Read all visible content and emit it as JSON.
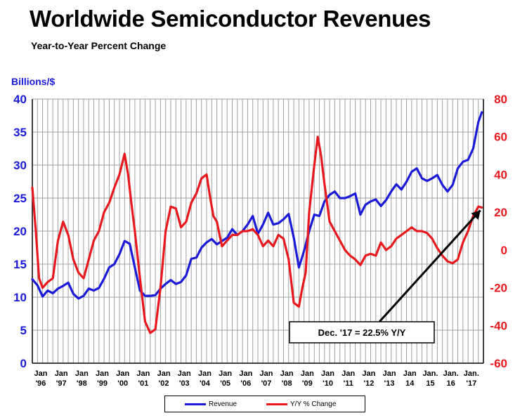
{
  "title": "Worldwide Semiconductor Revenues",
  "subtitle": "Year-to-Year Percent Change",
  "colors": {
    "revenue": "#1a1ad8",
    "yy": "#e8191e",
    "grid": "#a0a0a0"
  },
  "annotation": "Dec. '17 = 22.5% Y/Y",
  "legend": {
    "revenue": "Revenue",
    "yy": "Y/Y % Change"
  },
  "chart_data": {
    "type": "line",
    "ylabel_left": "Billions/$",
    "ylim_left": [
      0,
      40
    ],
    "yticks_left": [
      0,
      5,
      10,
      15,
      20,
      25,
      30,
      35,
      40
    ],
    "ylim_right": [
      -60,
      80
    ],
    "yticks_right": [
      -60,
      -40,
      -20,
      0,
      20,
      40,
      60,
      80
    ],
    "xlim": [
      1996.0,
      2018.0
    ],
    "x_ticks": [
      {
        "top": "Jan",
        "bottom": "'96"
      },
      {
        "top": "Jan",
        "bottom": "'97"
      },
      {
        "top": "Jan",
        "bottom": "'98"
      },
      {
        "top": "Jan",
        "bottom": "'99"
      },
      {
        "top": "Jan",
        "bottom": "'00"
      },
      {
        "top": "Jan",
        "bottom": "'01"
      },
      {
        "top": "Jan",
        "bottom": "'02"
      },
      {
        "top": "Jan",
        "bottom": "'03"
      },
      {
        "top": "Jan",
        "bottom": "'04"
      },
      {
        "top": "Jan",
        "bottom": "'05"
      },
      {
        "top": "Jan",
        "bottom": "'06"
      },
      {
        "top": "Jan",
        "bottom": "'07"
      },
      {
        "top": "Jan",
        "bottom": "'08"
      },
      {
        "top": "Jan",
        "bottom": "'09"
      },
      {
        "top": "Jan",
        "bottom": "'10"
      },
      {
        "top": "Jan",
        "bottom": "'11"
      },
      {
        "top": "Jan",
        "bottom": "'12"
      },
      {
        "top": "Jan",
        "bottom": "'13"
      },
      {
        "top": "Jan",
        "bottom": "14"
      },
      {
        "top": "Jan.",
        "bottom": "15"
      },
      {
        "top": "Jan.",
        "bottom": "16"
      },
      {
        "top": "Jan.",
        "bottom": "'17"
      }
    ],
    "grid": true,
    "legend_position": "bottom-center",
    "series": [
      {
        "name": "Revenue",
        "axis": "left",
        "x": [
          1996.0,
          1996.25,
          1996.5,
          1996.75,
          1997.0,
          1997.25,
          1997.5,
          1997.75,
          1998.0,
          1998.25,
          1998.5,
          1998.75,
          1999.0,
          1999.25,
          1999.5,
          1999.75,
          2000.0,
          2000.25,
          2000.5,
          2000.75,
          2001.0,
          2001.25,
          2001.5,
          2001.75,
          2002.0,
          2002.25,
          2002.5,
          2002.75,
          2003.0,
          2003.25,
          2003.5,
          2003.75,
          2004.0,
          2004.25,
          2004.5,
          2004.75,
          2005.0,
          2005.25,
          2005.5,
          2005.75,
          2006.0,
          2006.25,
          2006.5,
          2006.75,
          2007.0,
          2007.25,
          2007.5,
          2007.75,
          2008.0,
          2008.25,
          2008.5,
          2008.75,
          2009.0,
          2009.25,
          2009.5,
          2009.75,
          2010.0,
          2010.25,
          2010.5,
          2010.75,
          2011.0,
          2011.25,
          2011.5,
          2011.75,
          2012.0,
          2012.25,
          2012.5,
          2012.75,
          2013.0,
          2013.25,
          2013.5,
          2013.75,
          2014.0,
          2014.25,
          2014.5,
          2014.75,
          2015.0,
          2015.25,
          2015.5,
          2015.75,
          2016.0,
          2016.25,
          2016.5,
          2016.75,
          2017.0,
          2017.25,
          2017.5,
          2017.75,
          2017.92
        ],
        "values": [
          12.7,
          11.8,
          10.1,
          11.0,
          10.6,
          11.3,
          11.7,
          12.2,
          10.5,
          9.8,
          10.2,
          11.3,
          11.0,
          11.4,
          12.8,
          14.5,
          15.0,
          16.5,
          18.5,
          18.1,
          14.5,
          11.0,
          10.2,
          10.2,
          10.3,
          11.3,
          12.0,
          12.6,
          12.0,
          12.3,
          13.3,
          15.8,
          16.0,
          17.5,
          18.3,
          18.8,
          18.0,
          18.5,
          19.0,
          20.3,
          19.4,
          20.0,
          21.0,
          22.3,
          19.6,
          21.0,
          22.8,
          21.0,
          21.2,
          21.8,
          22.6,
          19.0,
          14.5,
          17.0,
          20.0,
          22.5,
          22.3,
          24.5,
          25.5,
          26.0,
          25.0,
          25.0,
          25.3,
          25.7,
          22.5,
          24.0,
          24.5,
          24.8,
          23.8,
          24.7,
          26.0,
          27.1,
          26.3,
          27.5,
          29.0,
          29.5,
          28.0,
          27.6,
          28.0,
          28.5,
          27.0,
          26.0,
          27.0,
          29.5,
          30.5,
          30.8,
          32.5,
          36.5,
          38.0
        ]
      },
      {
        "name": "Y/Y % Change",
        "axis": "right",
        "x": [
          1996.0,
          1996.17,
          1996.33,
          1996.5,
          1996.75,
          1997.0,
          1997.25,
          1997.5,
          1997.75,
          1998.0,
          1998.25,
          1998.5,
          1998.75,
          1999.0,
          1999.25,
          1999.5,
          1999.75,
          2000.0,
          2000.25,
          2000.5,
          2000.67,
          2000.83,
          2001.0,
          2001.25,
          2001.5,
          2001.75,
          2002.0,
          2002.25,
          2002.5,
          2002.75,
          2003.0,
          2003.25,
          2003.5,
          2003.75,
          2004.0,
          2004.25,
          2004.5,
          2004.67,
          2004.83,
          2005.0,
          2005.25,
          2005.5,
          2005.75,
          2006.0,
          2006.25,
          2006.5,
          2006.75,
          2007.0,
          2007.25,
          2007.5,
          2007.75,
          2008.0,
          2008.25,
          2008.5,
          2008.75,
          2009.0,
          2009.17,
          2009.33,
          2009.5,
          2009.75,
          2009.92,
          2010.08,
          2010.25,
          2010.5,
          2010.75,
          2011.0,
          2011.25,
          2011.5,
          2011.75,
          2012.0,
          2012.25,
          2012.5,
          2012.75,
          2013.0,
          2013.25,
          2013.5,
          2013.75,
          2014.0,
          2014.25,
          2014.5,
          2014.75,
          2015.0,
          2015.25,
          2015.5,
          2015.75,
          2016.0,
          2016.25,
          2016.5,
          2016.75,
          2017.0,
          2017.25,
          2017.5,
          2017.75,
          2017.92
        ],
        "values": [
          33,
          10,
          -15,
          -20,
          -17,
          -15,
          5,
          15,
          8,
          -5,
          -12,
          -15,
          -5,
          5,
          10,
          20,
          25,
          33,
          40,
          51,
          40,
          25,
          10,
          -15,
          -38,
          -44,
          -42,
          -20,
          10,
          23,
          22,
          12,
          15,
          25,
          30,
          38,
          40,
          28,
          18,
          15,
          2,
          5,
          8,
          8,
          10,
          10,
          11,
          8,
          2,
          5,
          2,
          8,
          6,
          -5,
          -28,
          -30,
          -20,
          -12,
          20,
          45,
          60,
          50,
          35,
          15,
          10,
          5,
          0,
          -3,
          -5,
          -8,
          -3,
          -2,
          -3,
          4,
          0,
          2,
          6,
          8,
          10,
          12,
          10,
          10,
          9,
          6,
          1,
          -3,
          -6,
          -7,
          -5,
          4,
          10,
          18,
          23,
          22.5
        ]
      }
    ]
  }
}
